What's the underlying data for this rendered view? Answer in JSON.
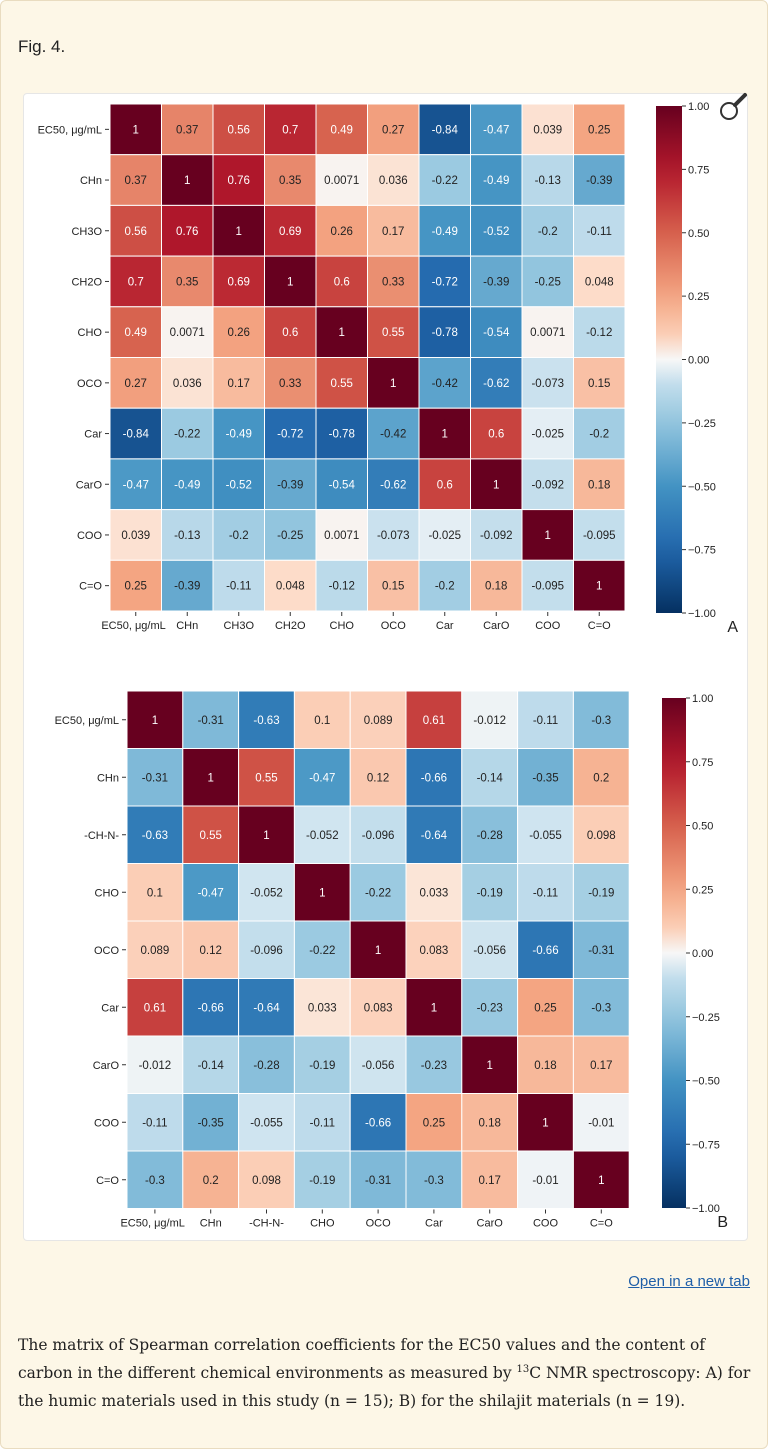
{
  "fig_label": "Fig. 4.",
  "open_link": "Open in a new tab",
  "caption": {
    "before": "The matrix of Spearman correlation coefficients for the EC50 values and the content of carbon in the different chemical environments as measured by ",
    "sup": "13",
    "after": "C NMR spectroscopy: A) for the humic materials used in this study (n = 15); B) for the shilajit materials (n = 19)."
  },
  "icons": {
    "magnifier": "magnifier-icon"
  },
  "colorscale": {
    "low": "#053061",
    "mid": "#f7f7f7",
    "high": "#67001f"
  },
  "chart_data": [
    {
      "type": "heatmap",
      "panel_label": "A",
      "rows": [
        "EC50, μg/mL",
        "CHn",
        "CH3O",
        "CH2O",
        "CHO",
        "OCO",
        "Car",
        "CarO",
        "COO",
        "C=O"
      ],
      "cols": [
        "EC50, μg/mL",
        "CHn",
        "CH3O",
        "CH2O",
        "CHO",
        "OCO",
        "Car",
        "CarO",
        "COO",
        "C=O"
      ],
      "values": [
        [
          1,
          0.37,
          0.56,
          0.7,
          0.49,
          0.27,
          -0.84,
          -0.47,
          0.039,
          0.25
        ],
        [
          0.37,
          1,
          0.76,
          0.35,
          0.0071,
          0.036,
          -0.22,
          -0.49,
          -0.13,
          -0.39
        ],
        [
          0.56,
          0.76,
          1,
          0.69,
          0.26,
          0.17,
          -0.49,
          -0.52,
          -0.2,
          -0.11
        ],
        [
          0.7,
          0.35,
          0.69,
          1,
          0.6,
          0.33,
          -0.72,
          -0.39,
          -0.25,
          0.048
        ],
        [
          0.49,
          0.0071,
          0.26,
          0.6,
          1,
          0.55,
          -0.78,
          -0.54,
          0.0071,
          -0.12
        ],
        [
          0.27,
          0.036,
          0.17,
          0.33,
          0.55,
          1,
          -0.42,
          -0.62,
          -0.073,
          0.15
        ],
        [
          -0.84,
          -0.22,
          -0.49,
          -0.72,
          -0.78,
          -0.42,
          1,
          0.6,
          -0.025,
          -0.2
        ],
        [
          -0.47,
          -0.49,
          -0.52,
          -0.39,
          -0.54,
          -0.62,
          0.6,
          1,
          -0.092,
          0.18
        ],
        [
          0.039,
          -0.13,
          -0.2,
          -0.25,
          0.0071,
          -0.073,
          -0.025,
          -0.092,
          1,
          -0.095
        ],
        [
          0.25,
          -0.39,
          -0.11,
          0.048,
          -0.12,
          0.15,
          -0.2,
          0.18,
          -0.095,
          1
        ]
      ],
      "colorbar_range": [
        -1,
        1
      ],
      "colorbar_ticks": [
        "1.00",
        "0.75",
        "0.50",
        "0.25",
        "0.00",
        "−0.25",
        "−0.50",
        "−0.75",
        "−1.00"
      ]
    },
    {
      "type": "heatmap",
      "panel_label": "B",
      "rows": [
        "EC50, μg/mL",
        "CHn",
        "-CH-N-",
        "CHO",
        "OCO",
        "Car",
        "CarO",
        "COO",
        "C=O"
      ],
      "cols": [
        "EC50, μg/mL",
        "CHn",
        "-CH-N-",
        "CHO",
        "OCO",
        "Car",
        "CarO",
        "COO",
        "C=O"
      ],
      "values": [
        [
          1,
          -0.31,
          -0.63,
          0.1,
          0.089,
          0.61,
          -0.012,
          -0.11,
          -0.3
        ],
        [
          -0.31,
          1,
          0.55,
          -0.47,
          0.12,
          -0.66,
          -0.14,
          -0.35,
          0.2
        ],
        [
          -0.63,
          0.55,
          1,
          -0.052,
          -0.096,
          -0.64,
          -0.28,
          -0.055,
          0.098
        ],
        [
          0.1,
          -0.47,
          -0.052,
          1,
          -0.22,
          0.033,
          -0.19,
          -0.11,
          -0.19
        ],
        [
          0.089,
          0.12,
          -0.096,
          -0.22,
          1,
          0.083,
          -0.056,
          -0.66,
          -0.31
        ],
        [
          0.61,
          -0.66,
          -0.64,
          0.033,
          0.083,
          1,
          -0.23,
          0.25,
          -0.3
        ],
        [
          -0.012,
          -0.14,
          -0.28,
          -0.19,
          -0.056,
          -0.23,
          1,
          0.18,
          0.17
        ],
        [
          -0.11,
          -0.35,
          -0.055,
          -0.11,
          -0.66,
          0.25,
          0.18,
          1,
          -0.01
        ],
        [
          -0.3,
          0.2,
          0.098,
          -0.19,
          -0.31,
          -0.3,
          0.17,
          -0.01,
          1
        ]
      ],
      "colorbar_range": [
        -1,
        1
      ],
      "colorbar_ticks": [
        "1.00",
        "0.75",
        "0.50",
        "0.25",
        "0.00",
        "−0.25",
        "−0.50",
        "−0.75",
        "−1.00"
      ]
    }
  ]
}
